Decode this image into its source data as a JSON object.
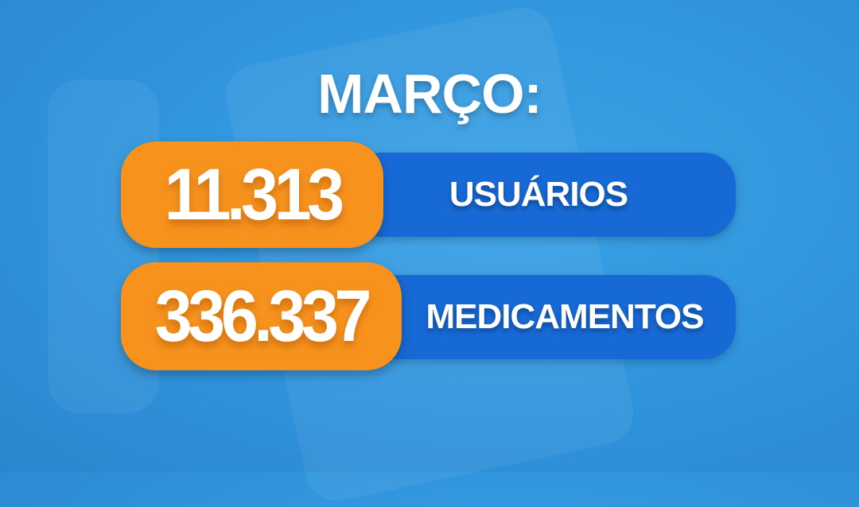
{
  "title": "MARÇO:",
  "stats": [
    {
      "value": "11.313",
      "label": "USUÁRIOS"
    },
    {
      "value": "336.337",
      "label": "MEDICAMENTOS"
    }
  ],
  "colors": {
    "background": "#2f94dc",
    "pill": "#f7931d",
    "bar": "#1769d6",
    "text": "#ffffff"
  }
}
